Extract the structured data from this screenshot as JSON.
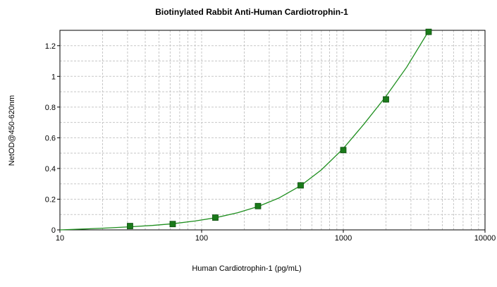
{
  "chart_data": {
    "type": "scatter",
    "title": "Biotinylated Rabbit Anti-Human Cardiotrophin-1",
    "xlabel": "Human Cardiotrophin-1 (pg/mL)",
    "ylabel": "NetOD@450-620nm",
    "x_scale": "log",
    "xlim": [
      10,
      10000
    ],
    "ylim": [
      0,
      1.3
    ],
    "x_ticks": [
      "10",
      "100",
      "1000",
      "10000"
    ],
    "y_ticks": [
      "0",
      "0.2",
      "0.4",
      "0.6",
      "0.8",
      "1",
      "1.2"
    ],
    "grid": true,
    "legend": "none",
    "series": [
      {
        "type": "scatter",
        "x": [
          31.25,
          62.5,
          125,
          250,
          500,
          1000,
          2000,
          4000
        ],
        "y": [
          0.025,
          0.038,
          0.08,
          0.155,
          0.29,
          0.52,
          0.85,
          1.29
        ]
      }
    ],
    "fit_curve": {
      "x": [
        10,
        15,
        20,
        31.25,
        45,
        62.5,
        90,
        125,
        180,
        250,
        350,
        500,
        700,
        1000,
        1400,
        2000,
        2800,
        4000
      ],
      "y": [
        0.0,
        0.006,
        0.011,
        0.02,
        0.029,
        0.04,
        0.058,
        0.079,
        0.112,
        0.152,
        0.207,
        0.288,
        0.391,
        0.53,
        0.69,
        0.87,
        1.06,
        1.295
      ]
    },
    "colors": {
      "marker": "#1a7a1a",
      "marker_edge": "#0d4d0d",
      "curve": "#1f8f1f",
      "grid": "#c8c8c8",
      "axis": "#000000"
    }
  }
}
